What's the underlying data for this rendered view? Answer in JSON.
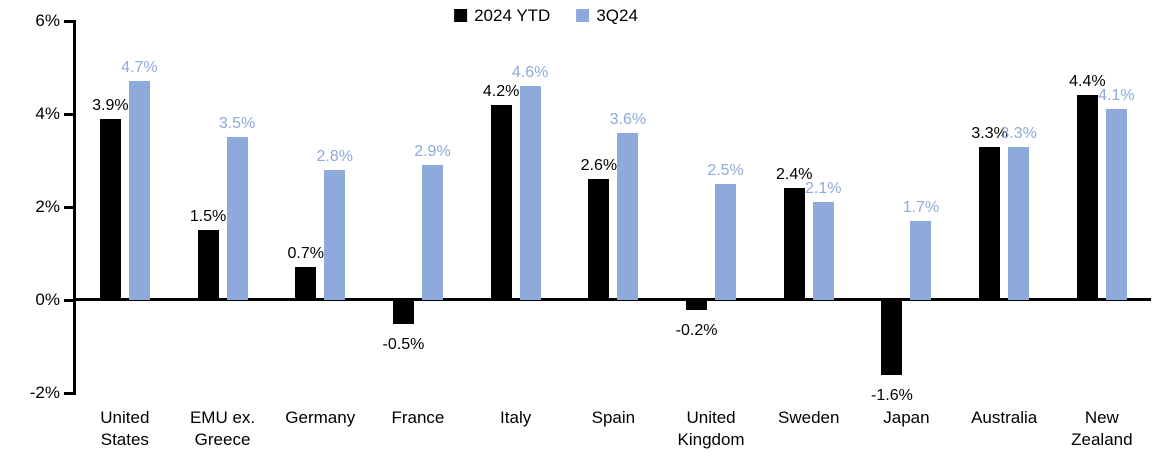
{
  "chart_data": {
    "type": "bar",
    "title": "",
    "xlabel": "",
    "ylabel": "",
    "ylim": [
      -2,
      6
    ],
    "grid": false,
    "legend_position": "top-center",
    "background_color": "#ffffff",
    "axis_color": "#000000",
    "categories": [
      "United States",
      "EMU ex. Greece",
      "Germany",
      "France",
      "Italy",
      "Spain",
      "United Kingdom",
      "Sweden",
      "Japan",
      "Australia",
      "New Zealand"
    ],
    "category_lines": [
      [
        "United",
        "States"
      ],
      [
        "EMU ex.",
        "Greece"
      ],
      [
        "Germany"
      ],
      [
        "France"
      ],
      [
        "Italy"
      ],
      [
        "Spain"
      ],
      [
        "United",
        "Kingdom"
      ],
      [
        "Sweden"
      ],
      [
        "Japan"
      ],
      [
        "Australia"
      ],
      [
        "New",
        "Zealand"
      ]
    ],
    "yticks": [
      {
        "label": "6%",
        "value": 6
      },
      {
        "label": "4%",
        "value": 4
      },
      {
        "label": "2%",
        "value": 2
      },
      {
        "label": "0%",
        "value": 0
      },
      {
        "label": "-2%",
        "value": -2
      }
    ],
    "series": [
      {
        "name": "2024 YTD",
        "color": "#000000",
        "label_color": "#000000",
        "values": [
          3.9,
          1.5,
          0.7,
          -0.5,
          4.2,
          2.6,
          -0.2,
          2.4,
          -1.6,
          3.3,
          4.4
        ],
        "labels": [
          "3.9%",
          "1.5%",
          "0.7%",
          "-0.5%",
          "4.2%",
          "2.6%",
          "-0.2%",
          "2.4%",
          "-1.6%",
          "3.3%",
          "4.4%"
        ]
      },
      {
        "name": "3Q24",
        "color": "#8EAADB",
        "label_color": "#8EAADB",
        "values": [
          4.7,
          3.5,
          2.8,
          2.9,
          4.6,
          3.6,
          2.5,
          2.1,
          1.7,
          3.3,
          4.1
        ],
        "labels": [
          "4.7%",
          "3.5%",
          "2.8%",
          "2.9%",
          "4.6%",
          "3.6%",
          "2.5%",
          "2.1%",
          "1.7%",
          "3.3%",
          "4.1%"
        ]
      }
    ]
  }
}
